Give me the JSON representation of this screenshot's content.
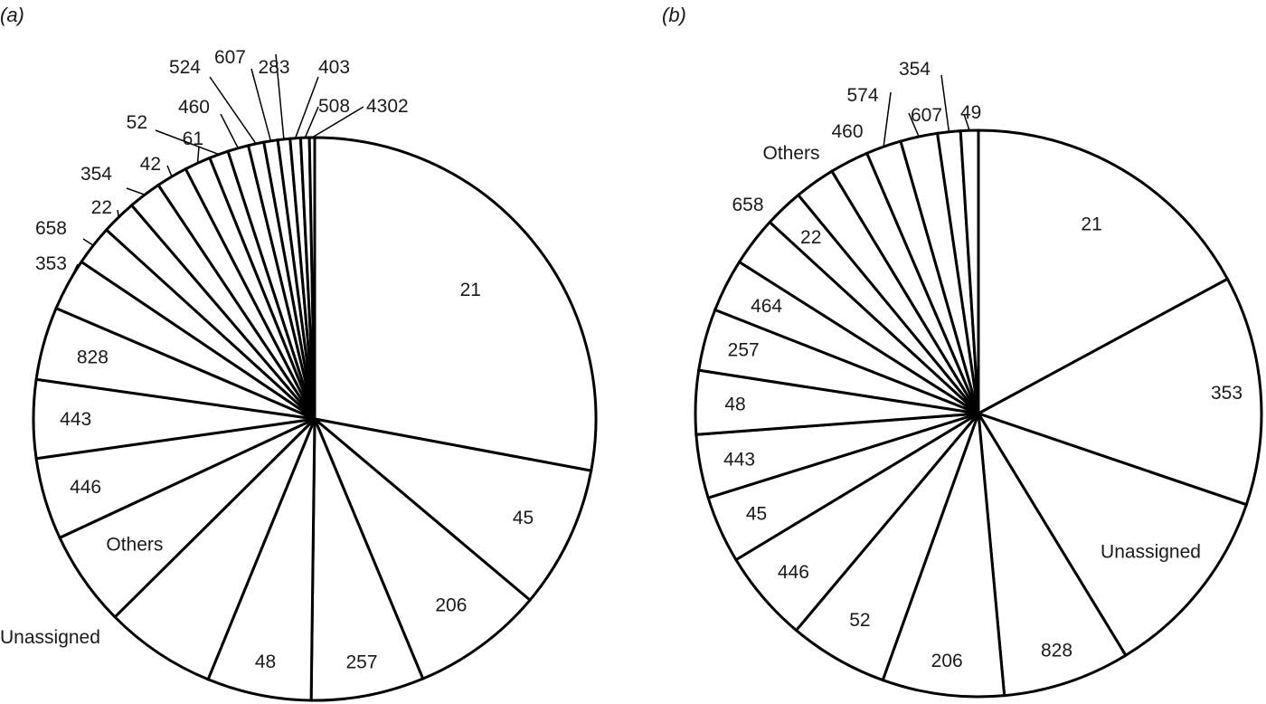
{
  "chart_data": [
    {
      "type": "pie",
      "panel_label": "(a)",
      "start": "12 o'clock",
      "direction": "clockwise",
      "slices": [
        {
          "label": "21",
          "value": 28.0
        },
        {
          "label": "45",
          "value": 8.2
        },
        {
          "label": "206",
          "value": 7.6
        },
        {
          "label": "257",
          "value": 6.5
        },
        {
          "label": "48",
          "value": 6.0
        },
        {
          "label": "Unassigned",
          "value": 6.4
        },
        {
          "label": "Others",
          "value": 5.5
        },
        {
          "label": "446",
          "value": 4.7
        },
        {
          "label": "443",
          "value": 4.5
        },
        {
          "label": "828",
          "value": 4.2
        },
        {
          "label": "353",
          "value": 3.0
        },
        {
          "label": "658",
          "value": 2.3
        },
        {
          "label": "22",
          "value": 2.0
        },
        {
          "label": "354",
          "value": 1.9
        },
        {
          "label": "42",
          "value": 1.8
        },
        {
          "label": "61",
          "value": 1.5
        },
        {
          "label": "52",
          "value": 1.1
        },
        {
          "label": "460",
          "value": 1.2
        },
        {
          "label": "524",
          "value": 0.9
        },
        {
          "label": "607",
          "value": 0.8
        },
        {
          "label": "283",
          "value": 0.7
        },
        {
          "label": "403",
          "value": 0.6
        },
        {
          "label": "508",
          "value": 0.5
        },
        {
          "label": "4302",
          "value": 0.3
        }
      ]
    },
    {
      "type": "pie",
      "panel_label": "(b)",
      "start": "12 o'clock",
      "direction": "clockwise",
      "slices": [
        {
          "label": "21",
          "value": 17.0
        },
        {
          "label": "353",
          "value": 13.0
        },
        {
          "label": "Unassigned",
          "value": 11.0
        },
        {
          "label": "828",
          "value": 7.2
        },
        {
          "label": "206",
          "value": 6.9
        },
        {
          "label": "52",
          "value": 5.6
        },
        {
          "label": "446",
          "value": 5.2
        },
        {
          "label": "45",
          "value": 3.8
        },
        {
          "label": "443",
          "value": 3.6
        },
        {
          "label": "48",
          "value": 3.6
        },
        {
          "label": "257",
          "value": 3.5
        },
        {
          "label": "464",
          "value": 3.0
        },
        {
          "label": "658",
          "value": 2.8
        },
        {
          "label": "22",
          "value": 2.2
        },
        {
          "label": "Others",
          "value": 2.3
        },
        {
          "label": "460",
          "value": 2.2
        },
        {
          "label": "574",
          "value": 2.0
        },
        {
          "label": "607",
          "value": 2.1
        },
        {
          "label": "354",
          "value": 1.3
        },
        {
          "label": "49",
          "value": 1.0
        }
      ]
    }
  ]
}
